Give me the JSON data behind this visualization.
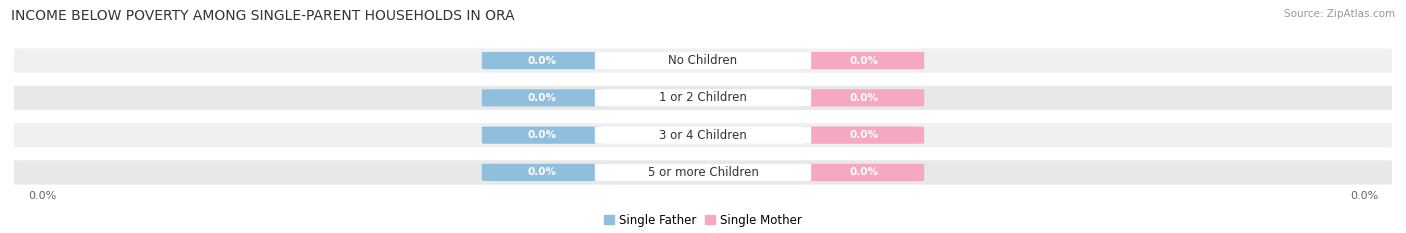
{
  "title": "INCOME BELOW POVERTY AMONG SINGLE-PARENT HOUSEHOLDS IN ORA",
  "source": "Source: ZipAtlas.com",
  "categories": [
    "No Children",
    "1 or 2 Children",
    "3 or 4 Children",
    "5 or more Children"
  ],
  "single_father_values": [
    0.0,
    0.0,
    0.0,
    0.0
  ],
  "single_mother_values": [
    0.0,
    0.0,
    0.0,
    0.0
  ],
  "father_color": "#90bfdd",
  "mother_color": "#f5a8bf",
  "row_bg_even": "#f0f0f0",
  "row_bg_odd": "#e8e8e8",
  "title_fontsize": 10,
  "source_fontsize": 7.5,
  "axis_label_fontsize": 8,
  "legend_fontsize": 8.5,
  "value_fontsize": 7.5,
  "category_fontsize": 8.5,
  "background_color": "#ffffff"
}
